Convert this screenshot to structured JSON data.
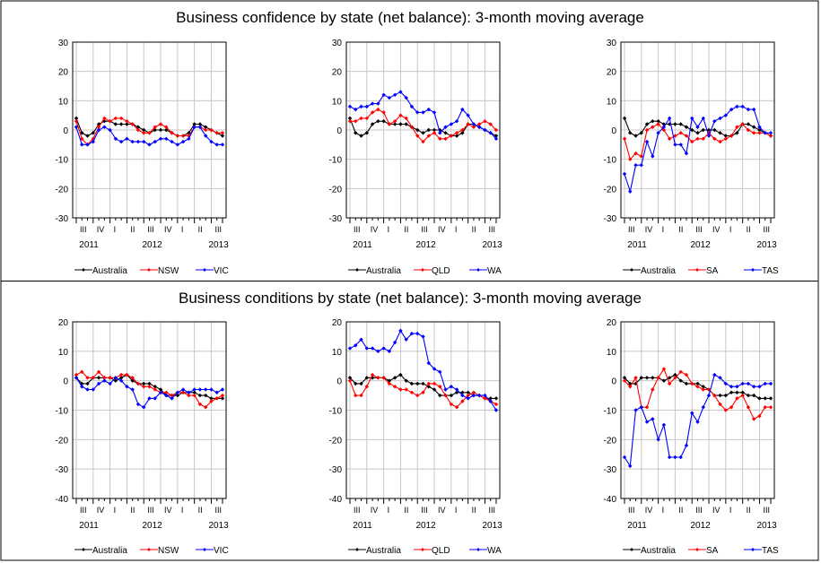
{
  "panels": [
    {
      "title": "Business confidence by state (net balance): 3-month moving average",
      "charts": [
        {
          "type": "line",
          "ylim": [
            -30,
            30
          ],
          "yticks": [
            -30,
            -20,
            -10,
            0,
            10,
            20,
            30
          ],
          "quarter_labels": [
            "III",
            "IV",
            "I",
            "II",
            "III",
            "IV",
            "I",
            "II",
            "III"
          ],
          "year_labels": [
            "2011",
            "2012",
            "2013"
          ],
          "legend": [
            "Australia",
            "NSW",
            "VIC"
          ],
          "series": [
            {
              "name": "Australia",
              "color": "#000000",
              "values": [
                4,
                -1,
                -2,
                -1,
                2,
                3,
                3,
                2,
                2,
                2,
                2,
                1,
                0,
                -1,
                0,
                0,
                0,
                -1,
                -2,
                -2,
                -1,
                2,
                2,
                1,
                0,
                -1,
                -2
              ]
            },
            {
              "name": "NSW",
              "color": "#ff0000",
              "values": [
                3,
                -3,
                -5,
                -3,
                1,
                4,
                3,
                4,
                4,
                3,
                2,
                0,
                -1,
                -1,
                1,
                2,
                1,
                -1,
                -2,
                -2,
                -2,
                1,
                1,
                0,
                0,
                -1,
                -1
              ]
            },
            {
              "name": "VIC",
              "color": "#0000ff",
              "values": [
                1,
                -5,
                -5,
                -4,
                0,
                1,
                0,
                -3,
                -4,
                -3,
                -4,
                -4,
                -4,
                -5,
                -4,
                -3,
                -3,
                -4,
                -5,
                -4,
                -3,
                1,
                1,
                -2,
                -4,
                -5,
                -5
              ]
            }
          ]
        },
        {
          "type": "line",
          "ylim": [
            -30,
            30
          ],
          "yticks": [
            -30,
            -20,
            -10,
            0,
            10,
            20,
            30
          ],
          "quarter_labels": [
            "III",
            "IV",
            "I",
            "II",
            "III",
            "IV",
            "I",
            "II",
            "III"
          ],
          "year_labels": [
            "2011",
            "2012",
            "2013"
          ],
          "legend": [
            "Australia",
            "QLD",
            "WA"
          ],
          "series": [
            {
              "name": "Australia",
              "color": "#000000",
              "values": [
                4,
                -1,
                -2,
                -1,
                2,
                3,
                3,
                2,
                2,
                2,
                2,
                1,
                0,
                -1,
                0,
                0,
                0,
                -1,
                -2,
                -2,
                -1,
                2,
                2,
                1,
                0,
                -1,
                -2
              ]
            },
            {
              "name": "QLD",
              "color": "#ff0000",
              "values": [
                3,
                3,
                4,
                4,
                6,
                7,
                6,
                2,
                3,
                5,
                4,
                1,
                -2,
                -4,
                -2,
                -1,
                -3,
                -3,
                -2,
                -1,
                0,
                2,
                1,
                2,
                3,
                2,
                0
              ]
            },
            {
              "name": "WA",
              "color": "#0000ff",
              "values": [
                8,
                7,
                8,
                8,
                9,
                9,
                12,
                11,
                12,
                13,
                11,
                8,
                6,
                6,
                7,
                6,
                -1,
                1,
                2,
                3,
                7,
                5,
                2,
                1,
                0,
                -1,
                -3
              ]
            }
          ]
        },
        {
          "type": "line",
          "ylim": [
            -30,
            30
          ],
          "yticks": [
            -30,
            -20,
            -10,
            0,
            10,
            20,
            30
          ],
          "quarter_labels": [
            "III",
            "IV",
            "I",
            "II",
            "III",
            "IV",
            "I",
            "II",
            "III"
          ],
          "year_labels": [
            "2011",
            "2012",
            "2013"
          ],
          "legend": [
            "Australia",
            "SA",
            "TAS"
          ],
          "series": [
            {
              "name": "Australia",
              "color": "#000000",
              "values": [
                4,
                -1,
                -2,
                -1,
                2,
                3,
                3,
                2,
                2,
                2,
                2,
                1,
                0,
                -1,
                0,
                0,
                0,
                -1,
                -2,
                -2,
                -1,
                2,
                2,
                1,
                0,
                -1,
                -2
              ]
            },
            {
              "name": "SA",
              "color": "#ff0000",
              "values": [
                -3,
                -10,
                -8,
                -9,
                0,
                1,
                2,
                0,
                -3,
                -2,
                -1,
                -2,
                -4,
                -3,
                -3,
                -1,
                -3,
                -4,
                -3,
                -2,
                1,
                2,
                0,
                -1,
                -1,
                -1,
                -2
              ]
            },
            {
              "name": "TAS",
              "color": "#0000ff",
              "values": [
                -15,
                -21,
                -12,
                -12,
                -4,
                -9,
                -1,
                1,
                4,
                -5,
                -5,
                -8,
                4,
                1,
                4,
                -2,
                3,
                4,
                5,
                7,
                8,
                8,
                7,
                7,
                1,
                -1,
                -1
              ]
            }
          ]
        }
      ]
    },
    {
      "title": "Business conditions by state (net balance): 3-month moving average",
      "charts": [
        {
          "type": "line",
          "ylim": [
            -40,
            20
          ],
          "yticks": [
            -40,
            -30,
            -20,
            -10,
            0,
            10,
            20
          ],
          "quarter_labels": [
            "III",
            "IV",
            "I",
            "II",
            "III",
            "IV",
            "I",
            "II",
            "III"
          ],
          "year_labels": [
            "2011",
            "2012",
            "2013"
          ],
          "legend": [
            "Australia",
            "NSW",
            "VIC"
          ],
          "series": [
            {
              "name": "Australia",
              "color": "#000000",
              "values": [
                1,
                -1,
                -1,
                1,
                1,
                1,
                1,
                0,
                1,
                2,
                0,
                -1,
                -1,
                -1,
                -2,
                -3,
                -5,
                -5,
                -5,
                -4,
                -4,
                -4,
                -5,
                -5,
                -6,
                -6,
                -6
              ]
            },
            {
              "name": "NSW",
              "color": "#ff0000",
              "values": [
                2,
                3,
                1,
                1,
                3,
                1,
                1,
                1,
                2,
                2,
                1,
                -1,
                -2,
                -2,
                -3,
                -4,
                -4,
                -5,
                -4,
                -4,
                -5,
                -5,
                -8,
                -9,
                -7,
                -6,
                -5
              ]
            },
            {
              "name": "VIC",
              "color": "#0000ff",
              "values": [
                1,
                -2,
                -3,
                -3,
                -1,
                0,
                -1,
                1,
                0,
                -2,
                -3,
                -8,
                -9,
                -6,
                -6,
                -4,
                -5,
                -6,
                -4,
                -3,
                -4,
                -3,
                -3,
                -3,
                -3,
                -4,
                -3
              ]
            }
          ]
        },
        {
          "type": "line",
          "ylim": [
            -40,
            20
          ],
          "yticks": [
            -40,
            -30,
            -20,
            -10,
            0,
            10,
            20
          ],
          "quarter_labels": [
            "III",
            "IV",
            "I",
            "II",
            "III",
            "IV",
            "I",
            "II",
            "III"
          ],
          "year_labels": [
            "2011",
            "2012",
            "2013"
          ],
          "legend": [
            "Australia",
            "QLD",
            "WA"
          ],
          "series": [
            {
              "name": "Australia",
              "color": "#000000",
              "values": [
                1,
                -1,
                -1,
                1,
                1,
                1,
                1,
                0,
                1,
                2,
                0,
                -1,
                -1,
                -1,
                -2,
                -3,
                -5,
                -5,
                -5,
                -4,
                -4,
                -4,
                -5,
                -5,
                -6,
                -6,
                -6
              ]
            },
            {
              "name": "QLD",
              "color": "#ff0000",
              "values": [
                0,
                -5,
                -5,
                -2,
                2,
                1,
                1,
                -1,
                -2,
                -3,
                -3,
                -4,
                -5,
                -4,
                -1,
                -1,
                -2,
                -5,
                -8,
                -9,
                -7,
                -5,
                -4,
                -5,
                -6,
                -7,
                -8
              ]
            },
            {
              "name": "WA",
              "color": "#0000ff",
              "values": [
                11,
                12,
                14,
                11,
                11,
                10,
                11,
                10,
                13,
                17,
                14,
                16,
                16,
                15,
                6,
                4,
                3,
                -3,
                -2,
                -3,
                -5,
                -6,
                -5,
                -5,
                -5,
                -7,
                -10
              ]
            }
          ]
        },
        {
          "type": "line",
          "ylim": [
            -40,
            20
          ],
          "yticks": [
            -40,
            -30,
            -20,
            -10,
            0,
            10,
            20
          ],
          "quarter_labels": [
            "III",
            "IV",
            "I",
            "II",
            "III",
            "IV",
            "I",
            "II",
            "III"
          ],
          "year_labels": [
            "2011",
            "2012",
            "2013"
          ],
          "legend": [
            "Australia",
            "SA",
            "TAS"
          ],
          "series": [
            {
              "name": "Australia",
              "color": "#000000",
              "values": [
                1,
                -1,
                -1,
                1,
                1,
                1,
                1,
                0,
                1,
                2,
                0,
                -1,
                -1,
                -1,
                -2,
                -3,
                -5,
                -5,
                -5,
                -4,
                -4,
                -4,
                -5,
                -5,
                -6,
                -6,
                -6
              ]
            },
            {
              "name": "SA",
              "color": "#ff0000",
              "values": [
                0,
                -2,
                1,
                -9,
                -9,
                -3,
                1,
                4,
                -1,
                1,
                3,
                2,
                -1,
                -2,
                -3,
                -3,
                -5,
                -8,
                -10,
                -9,
                -6,
                -5,
                -9,
                -13,
                -12,
                -9,
                -9
              ]
            },
            {
              "name": "TAS",
              "color": "#0000ff",
              "values": [
                -26,
                -29,
                -10,
                -9,
                -14,
                -13,
                -20,
                -15,
                -26,
                -26,
                -26,
                -22,
                -11,
                -14,
                -9,
                -5,
                2,
                1,
                -1,
                -2,
                -2,
                -1,
                -1,
                -2,
                -2,
                -1,
                -1
              ]
            }
          ]
        }
      ]
    }
  ]
}
